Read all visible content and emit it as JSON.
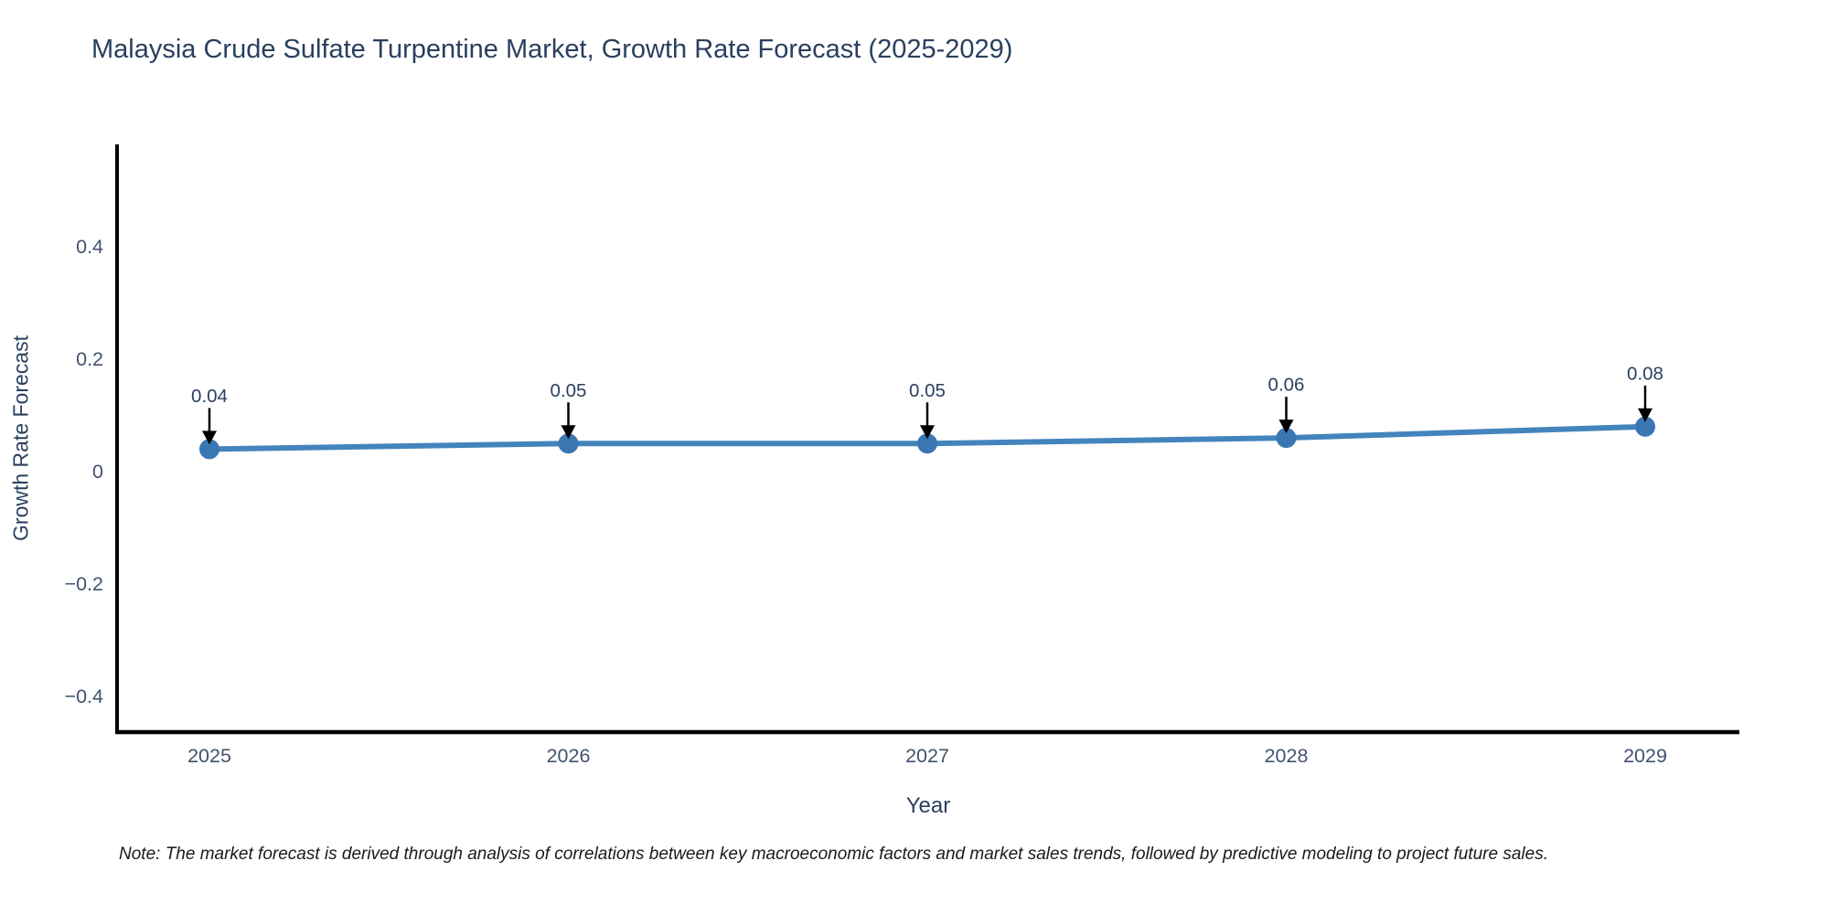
{
  "chart_data": {
    "type": "line",
    "title": "Malaysia Crude Sulfate Turpentine Market, Growth Rate Forecast (2025-2029)",
    "xlabel": "Year",
    "ylabel": "Growth Rate Forecast",
    "x": [
      2025,
      2026,
      2027,
      2028,
      2029
    ],
    "series": [
      {
        "name": "Growth Rate Forecast",
        "values": [
          0.04,
          0.05,
          0.05,
          0.06,
          0.08
        ]
      }
    ],
    "point_labels": [
      "0.04",
      "0.05",
      "0.05",
      "0.06",
      "0.08"
    ],
    "xtick_labels": [
      "2025",
      "2026",
      "2027",
      "2028",
      "2029"
    ],
    "ytick_values": [
      0.4,
      0.2,
      0,
      -0.2,
      -0.4
    ],
    "ytick_labels": [
      "0.4",
      "0.2",
      "0",
      "−0.2",
      "−0.4"
    ],
    "ylim": [
      -0.463,
      0.582
    ],
    "grid": false,
    "legend_position": "none",
    "annotation_style": "value-with-down-arrow",
    "note": "Note: The market forecast is derived through analysis of correlations between key macroeconomic factors and market sales trends, followed by predictive modeling to project future sales.",
    "colors": {
      "line": "#4484bd",
      "marker": "#3a77b2",
      "arrow": "#000000",
      "axis": "#000000",
      "title_text": "#2a3f5f",
      "tick_text": "#42526e",
      "annotation_text": "#2a3f5f",
      "note_text": "#1a1a1a"
    }
  }
}
